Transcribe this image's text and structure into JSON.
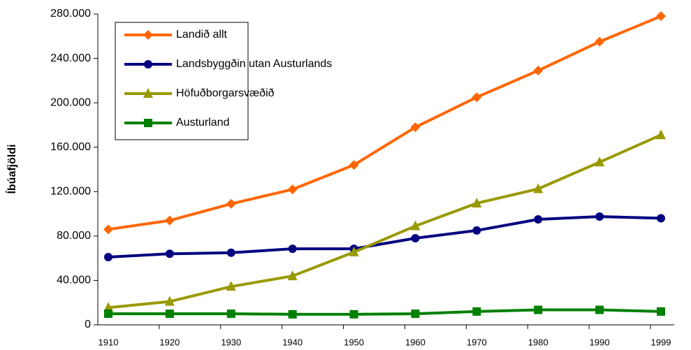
{
  "chart_data": {
    "type": "line",
    "ylabel": "Íbúafjöldi",
    "categories": [
      "1910",
      "1920",
      "1930",
      "1940",
      "1950",
      "1960",
      "1970",
      "1980",
      "1990",
      "1999"
    ],
    "series": [
      {
        "name": "Landið allt",
        "color": "#ff6600",
        "marker": "diamond",
        "values": [
          86000,
          94000,
          109000,
          122000,
          144000,
          178000,
          205000,
          229000,
          255000,
          278000
        ]
      },
      {
        "name": "Landsbyggðin utan Austurlands",
        "color": "#000080",
        "marker": "circle",
        "values": [
          61000,
          64000,
          65000,
          68500,
          68500,
          78000,
          85000,
          95000,
          97500,
          96000
        ]
      },
      {
        "name": "Höfuðborgarsvæðið",
        "color": "#999900",
        "marker": "triangle",
        "values": [
          15500,
          21000,
          34500,
          44000,
          65500,
          89000,
          109500,
          122500,
          146500,
          171000
        ]
      },
      {
        "name": "Austurland",
        "color": "#008000",
        "marker": "square",
        "values": [
          10000,
          10000,
          10000,
          9500,
          9500,
          10000,
          12000,
          13500,
          13500,
          12000
        ]
      }
    ],
    "ylim": [
      0,
      280000
    ],
    "yticks": [
      0,
      {
        "value": 40000,
        "label": "40.000"
      },
      {
        "value": 80000,
        "label": "80.000"
      },
      {
        "value": 120000,
        "label": "120.000"
      },
      {
        "value": 160000,
        "label": "160.000"
      },
      {
        "value": 200000,
        "label": "200.000"
      },
      {
        "value": 240000,
        "label": "240.000"
      },
      {
        "value": 280000,
        "label": "280.000"
      }
    ],
    "legend": "upper left"
  }
}
